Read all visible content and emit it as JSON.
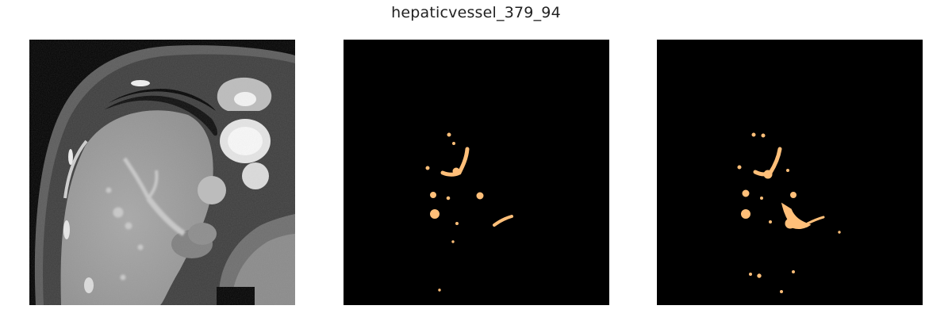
{
  "figure": {
    "title": "hepaticvessel_379_94"
  },
  "panels": [
    {
      "content": "ct-slice",
      "colormap": "grayscale"
    },
    {
      "content": "segmentation-mask",
      "mask_color": "#ffbf79"
    },
    {
      "content": "segmentation-mask",
      "mask_color": "#ffbf79"
    }
  ]
}
